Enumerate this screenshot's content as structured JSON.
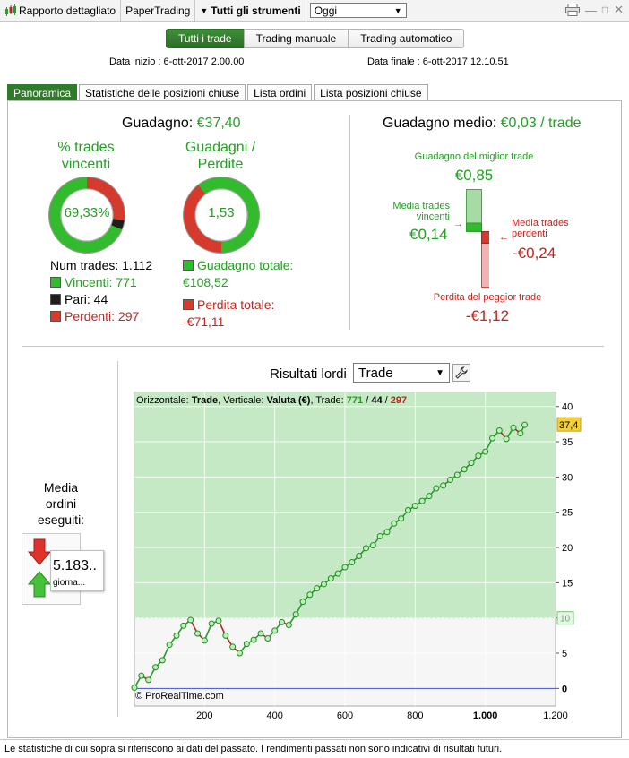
{
  "toolbar": {
    "report_label": "Rapporto dettagliato",
    "account_label": "PaperTrading",
    "instruments_label": "Tutti gli strumenti",
    "period_value": "Oggi"
  },
  "trade_type": {
    "all": "Tutti i trade",
    "manual": "Trading manuale",
    "auto": "Trading automatico"
  },
  "dates": {
    "start": "Data inizio : 6-ott-2017 2.00.00",
    "end": "Data finale : 6-ott-2017 12.10.51"
  },
  "tabs": [
    "Panoramica",
    "Statistiche delle posizioni chiuse",
    "Lista ordini",
    "Lista posizioni chiuse"
  ],
  "summary": {
    "gain_label": "Guadagno:",
    "gain_value": "€37,40",
    "win_title_1": "% trades",
    "win_title_2": "vincenti",
    "win_pct": "69,33%",
    "gl_title_1": "Guadagni /",
    "gl_title_2": "Perdite",
    "gl_ratio": "1,53",
    "num_trades": "Num trades: 1.112",
    "winners": "Vincenti: 771",
    "even": "Pari: 44",
    "losers": "Perdenti: 297",
    "total_gain_label": "Guadagno totale:",
    "total_gain_value": "€108,52",
    "total_loss_label": "Perdita totale:",
    "total_loss_value": "-€71,11"
  },
  "average": {
    "title_label": "Guadagno medio:",
    "title_value": "€0,03 / trade",
    "best_label": "Guadagno del miglior trade",
    "best_value": "€0,85",
    "avg_win_label_1": "Media trades",
    "avg_win_label_2": "vincenti",
    "avg_win_value": "€0,14",
    "avg_loss_label_1": "Media trades",
    "avg_loss_label_2": "perdenti",
    "avg_loss_value": "-€0,24",
    "worst_label": "Perdita del peggior trade",
    "worst_value": "-€1,12"
  },
  "orders": {
    "label_1": "Media",
    "label_2": "ordini",
    "label_3": "eseguiti:",
    "value": "5.183..",
    "unit": "giorna..."
  },
  "results": {
    "label": "Risultati lordi",
    "select_value": "Trade"
  },
  "chart_data": {
    "type": "line",
    "header_prefix": "Orizzontale: ",
    "header_h": "Trade",
    "header_mid": ", Verticale: ",
    "header_v": "Valuta (€)",
    "header_trade": ", Trade: ",
    "header_w": "771",
    "header_sep": " / ",
    "header_e": "44",
    "header_l": "297",
    "watermark": "© ProRealTime.com",
    "xlim": [
      0,
      1200
    ],
    "ylim": [
      -2.5,
      42
    ],
    "x_ticks": [
      "200",
      "400",
      "600",
      "800",
      "1.000",
      "1.200"
    ],
    "x_tick_values": [
      200,
      400,
      600,
      800,
      1000,
      1200
    ],
    "y_ticks": [
      "0",
      "5",
      "10",
      "15",
      "20",
      "25",
      "30",
      "35",
      "40"
    ],
    "y_tick_values": [
      0,
      5,
      10,
      15,
      20,
      25,
      30,
      35,
      40
    ],
    "threshold": 10,
    "threshold_label": "10",
    "last_value_label": "37,4",
    "last_value": 37.4,
    "x": [
      0,
      20,
      40,
      60,
      80,
      100,
      120,
      140,
      160,
      180,
      200,
      220,
      240,
      260,
      280,
      300,
      320,
      340,
      360,
      380,
      400,
      420,
      440,
      460,
      480,
      500,
      520,
      540,
      560,
      580,
      600,
      620,
      640,
      660,
      680,
      700,
      720,
      740,
      760,
      780,
      800,
      820,
      840,
      860,
      880,
      900,
      920,
      940,
      960,
      980,
      1000,
      1020,
      1040,
      1060,
      1080,
      1100,
      1112
    ],
    "y": [
      0.1,
      1.8,
      1.2,
      3.0,
      4.0,
      6.2,
      7.5,
      8.9,
      9.7,
      7.8,
      6.8,
      9.2,
      9.6,
      7.5,
      5.9,
      5.0,
      6.3,
      6.9,
      7.8,
      7.1,
      8.2,
      9.4,
      9.0,
      10.5,
      12.3,
      13.3,
      14.2,
      14.8,
      15.6,
      16.3,
      17.2,
      17.9,
      18.8,
      19.9,
      20.3,
      21.6,
      22.2,
      23.4,
      24.1,
      25.3,
      25.9,
      26.6,
      27.3,
      28.4,
      28.8,
      29.6,
      30.3,
      31.1,
      32.0,
      33.0,
      33.6,
      35.5,
      36.6,
      35.4,
      37.0,
      36.2,
      37.4
    ]
  },
  "footer": "Le statistiche di cui sopra si riferiscono ai dati del passato. I rendimenti passati non sono indicativi di risultati futuri.",
  "colors": {
    "accent_green": "#22a022",
    "loss_red": "#c0261d",
    "chart_fill": "#c5e9c5",
    "line_green": "#2a9a2a",
    "line_red": "#b02a20",
    "zero_line": "#3b4fd8"
  }
}
